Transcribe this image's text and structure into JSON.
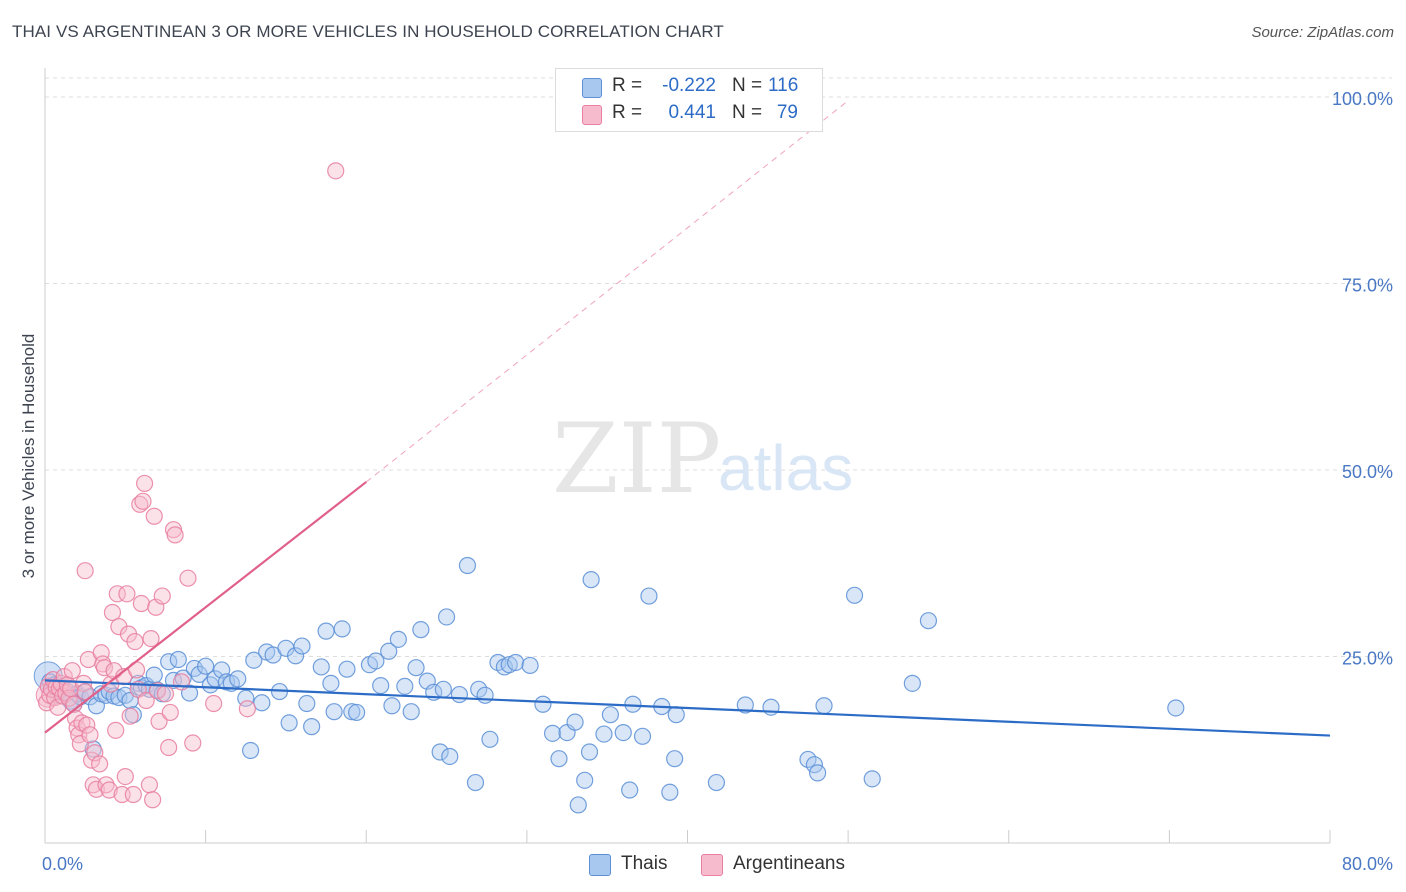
{
  "header": {
    "title": "THAI VS ARGENTINEAN 3 OR MORE VEHICLES IN HOUSEHOLD CORRELATION CHART",
    "source": "Source: ZipAtlas.com"
  },
  "watermark": {
    "zip": "ZIP",
    "atlas": "atlas"
  },
  "legend": {
    "rows": [
      {
        "r_label": "R =",
        "r_value": "-0.222",
        "n_label": "N =",
        "n_value": "116"
      },
      {
        "r_label": "R =",
        "r_value": "0.441",
        "n_label": "N =",
        "n_value": "79"
      }
    ]
  },
  "bottom_legend": {
    "thais": "Thais",
    "argentineans": "Argentineans"
  },
  "colors": {
    "thais_fill": "#a9c8f0",
    "thais_stroke": "#5b8fd6",
    "thais_line": "#2d6cc6",
    "arg_fill": "#f6bccd",
    "arg_stroke": "#e87ea0",
    "arg_line": "#e0608a",
    "grid": "#dddddd",
    "axis_tick_text": "#4a78c4"
  },
  "chart_data": {
    "type": "scatter",
    "title": "THAI VS ARGENTINEAN 3 OR MORE VEHICLES IN HOUSEHOLD CORRELATION CHART",
    "xlabel": "",
    "ylabel": "3 or more Vehicles in Household",
    "xlim": [
      0,
      80
    ],
    "ylim": [
      0,
      100
    ],
    "x_tick_labels": [
      "0.0%",
      "80.0%"
    ],
    "y_ticks": [
      25,
      50,
      75,
      100
    ],
    "y_tick_labels": [
      "25.0%",
      "50.0%",
      "75.0%",
      "100.0%"
    ],
    "grid": true,
    "legend_position": "top-center",
    "series": [
      {
        "name": "Thais",
        "r": -0.222,
        "n": 116,
        "trend": {
          "x": [
            0,
            80
          ],
          "y": [
            21.8,
            14.4
          ],
          "style": "solid"
        },
        "points": [
          [
            0.3,
            21.6
          ],
          [
            0.5,
            20.5
          ],
          [
            0.6,
            21.2
          ],
          [
            0.8,
            19.8
          ],
          [
            1.0,
            21.0
          ],
          [
            1.2,
            20.1
          ],
          [
            1.4,
            20.3
          ],
          [
            1.6,
            19.0
          ],
          [
            1.8,
            18.6
          ],
          [
            2.0,
            20.0
          ],
          [
            2.2,
            19.6
          ],
          [
            2.5,
            20.2
          ],
          [
            2.8,
            19.6
          ],
          [
            3.0,
            12.6
          ],
          [
            3.2,
            18.4
          ],
          [
            3.5,
            20.0
          ],
          [
            3.8,
            19.8
          ],
          [
            4.0,
            20.3
          ],
          [
            4.3,
            19.7
          ],
          [
            4.6,
            19.5
          ],
          [
            5.0,
            19.8
          ],
          [
            5.3,
            19.1
          ],
          [
            5.5,
            17.2
          ],
          [
            5.8,
            21.4
          ],
          [
            6.0,
            20.8
          ],
          [
            6.3,
            21.1
          ],
          [
            6.5,
            20.6
          ],
          [
            6.8,
            22.5
          ],
          [
            7.0,
            20.5
          ],
          [
            7.3,
            20.0
          ],
          [
            7.7,
            24.3
          ],
          [
            8.0,
            21.8
          ],
          [
            8.3,
            24.6
          ],
          [
            8.6,
            22.1
          ],
          [
            9.0,
            20.1
          ],
          [
            9.3,
            23.4
          ],
          [
            9.6,
            22.6
          ],
          [
            10.0,
            23.7
          ],
          [
            10.3,
            21.2
          ],
          [
            10.6,
            22.0
          ],
          [
            11.0,
            23.2
          ],
          [
            11.3,
            21.6
          ],
          [
            11.6,
            21.4
          ],
          [
            12.0,
            22.0
          ],
          [
            12.5,
            19.4
          ],
          [
            12.8,
            12.4
          ],
          [
            13.0,
            24.5
          ],
          [
            13.5,
            18.8
          ],
          [
            13.8,
            25.6
          ],
          [
            14.2,
            25.2
          ],
          [
            14.6,
            20.3
          ],
          [
            15.0,
            26.1
          ],
          [
            15.2,
            16.1
          ],
          [
            15.6,
            25.1
          ],
          [
            16.0,
            26.4
          ],
          [
            16.3,
            18.7
          ],
          [
            16.6,
            15.6
          ],
          [
            17.2,
            23.6
          ],
          [
            17.5,
            28.4
          ],
          [
            17.8,
            21.4
          ],
          [
            18.0,
            17.6
          ],
          [
            18.5,
            28.7
          ],
          [
            18.8,
            23.3
          ],
          [
            19.1,
            17.6
          ],
          [
            19.4,
            17.5
          ],
          [
            20.2,
            23.9
          ],
          [
            20.6,
            24.4
          ],
          [
            20.9,
            21.1
          ],
          [
            21.4,
            25.7
          ],
          [
            21.6,
            18.4
          ],
          [
            22.0,
            27.3
          ],
          [
            22.4,
            21.0
          ],
          [
            22.8,
            17.6
          ],
          [
            23.1,
            23.5
          ],
          [
            23.4,
            28.6
          ],
          [
            23.8,
            21.7
          ],
          [
            24.2,
            20.2
          ],
          [
            24.6,
            12.2
          ],
          [
            24.8,
            20.6
          ],
          [
            25.0,
            30.3
          ],
          [
            25.2,
            11.6
          ],
          [
            25.8,
            19.9
          ],
          [
            26.3,
            37.2
          ],
          [
            26.8,
            8.1
          ],
          [
            27.0,
            20.6
          ],
          [
            27.4,
            19.8
          ],
          [
            27.7,
            13.9
          ],
          [
            28.2,
            24.2
          ],
          [
            28.6,
            23.6
          ],
          [
            28.9,
            23.9
          ],
          [
            29.3,
            24.2
          ],
          [
            30.2,
            23.8
          ],
          [
            31.0,
            18.6
          ],
          [
            31.6,
            14.7
          ],
          [
            32.0,
            11.3
          ],
          [
            32.5,
            14.8
          ],
          [
            33.0,
            16.2
          ],
          [
            33.2,
            5.1
          ],
          [
            33.6,
            8.4
          ],
          [
            33.9,
            12.2
          ],
          [
            34.0,
            35.3
          ],
          [
            34.8,
            14.6
          ],
          [
            35.2,
            17.2
          ],
          [
            36.0,
            14.8
          ],
          [
            36.4,
            7.1
          ],
          [
            36.6,
            18.6
          ],
          [
            37.2,
            14.3
          ],
          [
            37.6,
            33.1
          ],
          [
            38.4,
            18.3
          ],
          [
            38.9,
            6.8
          ],
          [
            39.3,
            17.2
          ],
          [
            39.2,
            11.3
          ],
          [
            41.8,
            8.1
          ],
          [
            43.6,
            18.5
          ],
          [
            45.2,
            18.2
          ],
          [
            47.5,
            11.2
          ],
          [
            47.9,
            10.5
          ],
          [
            48.1,
            9.4
          ],
          [
            48.5,
            18.4
          ],
          [
            50.4,
            33.2
          ],
          [
            51.5,
            8.6
          ],
          [
            54.0,
            21.4
          ],
          [
            55.0,
            29.8
          ],
          [
            70.4,
            18.1
          ]
        ]
      },
      {
        "name": "Argentineans",
        "r": 0.441,
        "n": 79,
        "trend": {
          "x": [
            0,
            20
          ],
          "y": [
            14.8,
            48.4
          ],
          "style": "solid",
          "extension_x": [
            20,
            50
          ],
          "extension_y": [
            48.4,
            99.5
          ],
          "extension_style": "dashed"
        },
        "points": [
          [
            0.1,
            18.8
          ],
          [
            0.2,
            21.0
          ],
          [
            0.3,
            19.8
          ],
          [
            0.4,
            20.6
          ],
          [
            0.5,
            21.9
          ],
          [
            0.6,
            19.5
          ],
          [
            0.7,
            20.9
          ],
          [
            0.8,
            18.2
          ],
          [
            0.9,
            20.7
          ],
          [
            1.0,
            21.4
          ],
          [
            1.1,
            19.7
          ],
          [
            1.2,
            22.3
          ],
          [
            1.3,
            20.1
          ],
          [
            1.4,
            21.2
          ],
          [
            1.5,
            19.4
          ],
          [
            1.6,
            20.7
          ],
          [
            1.7,
            23.1
          ],
          [
            1.8,
            18.6
          ],
          [
            1.9,
            16.7
          ],
          [
            2.0,
            15.4
          ],
          [
            2.1,
            14.5
          ],
          [
            2.2,
            13.3
          ],
          [
            2.3,
            16.1
          ],
          [
            2.4,
            21.4
          ],
          [
            2.5,
            20.3
          ],
          [
            2.6,
            15.8
          ],
          [
            2.7,
            24.6
          ],
          [
            2.8,
            14.5
          ],
          [
            2.9,
            11.1
          ],
          [
            3.0,
            7.8
          ],
          [
            2.5,
            36.5
          ],
          [
            3.1,
            12.1
          ],
          [
            3.2,
            7.2
          ],
          [
            3.4,
            10.6
          ],
          [
            3.5,
            25.5
          ],
          [
            3.6,
            24.0
          ],
          [
            3.7,
            23.5
          ],
          [
            3.8,
            7.8
          ],
          [
            4.0,
            7.1
          ],
          [
            4.1,
            21.3
          ],
          [
            4.2,
            30.9
          ],
          [
            4.3,
            23.1
          ],
          [
            4.4,
            15.1
          ],
          [
            4.5,
            33.4
          ],
          [
            4.6,
            29.0
          ],
          [
            4.8,
            6.5
          ],
          [
            4.9,
            22.3
          ],
          [
            5.0,
            8.9
          ],
          [
            5.1,
            33.4
          ],
          [
            5.2,
            28.0
          ],
          [
            5.3,
            17.0
          ],
          [
            5.5,
            6.5
          ],
          [
            5.6,
            27.0
          ],
          [
            5.7,
            23.2
          ],
          [
            5.8,
            20.6
          ],
          [
            5.9,
            45.4
          ],
          [
            6.0,
            32.1
          ],
          [
            6.1,
            45.8
          ],
          [
            6.2,
            48.2
          ],
          [
            6.3,
            19.1
          ],
          [
            6.5,
            7.8
          ],
          [
            6.6,
            27.4
          ],
          [
            6.7,
            5.8
          ],
          [
            6.8,
            43.8
          ],
          [
            6.9,
            31.6
          ],
          [
            7.0,
            20.4
          ],
          [
            7.1,
            16.3
          ],
          [
            7.3,
            33.1
          ],
          [
            7.5,
            20.0
          ],
          [
            7.7,
            12.8
          ],
          [
            7.8,
            17.5
          ],
          [
            8.0,
            42.0
          ],
          [
            8.1,
            41.3
          ],
          [
            8.5,
            21.6
          ],
          [
            8.9,
            35.5
          ],
          [
            9.2,
            13.4
          ],
          [
            10.5,
            18.7
          ],
          [
            12.6,
            18.0
          ],
          [
            18.1,
            90.1
          ]
        ]
      }
    ]
  }
}
